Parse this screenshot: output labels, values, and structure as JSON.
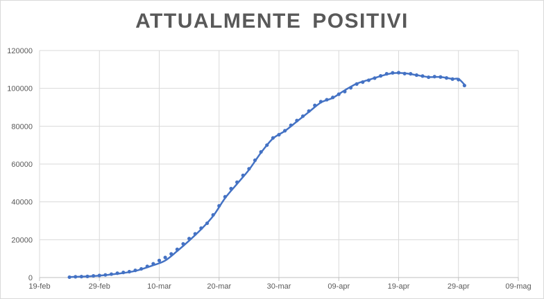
{
  "chart_data": {
    "type": "line",
    "title": "ATTUALMENTE  POSITIVI",
    "xlabel": "",
    "ylabel": "",
    "x_tick_labels": [
      "19-feb",
      "29-feb",
      "10-mar",
      "20-mar",
      "30-mar",
      "09-apr",
      "19-apr",
      "29-apr",
      "09-mag"
    ],
    "y_tick_labels": [
      "0",
      "20000",
      "40000",
      "60000",
      "80000",
      "100000",
      "120000"
    ],
    "xlim": [
      0,
      80
    ],
    "ylim": [
      0,
      120000
    ],
    "x_tick_step": 10,
    "y_tick_step": 20000,
    "grid": true,
    "legend": "none",
    "series_color": "#4472c4",
    "series": [
      {
        "style": "markers",
        "x": [
          5,
          6,
          7,
          8,
          9,
          10,
          11,
          12,
          13,
          14,
          15,
          16,
          17,
          18,
          19,
          20,
          21,
          22,
          23,
          24,
          25,
          26,
          27,
          28,
          29,
          30,
          31,
          32,
          33,
          34,
          35,
          36,
          37,
          38,
          39,
          40,
          41,
          42,
          43,
          44,
          45,
          46,
          47,
          48,
          49,
          50,
          51,
          52,
          53,
          54,
          55,
          56,
          57,
          58,
          59,
          60,
          61,
          62,
          63,
          64,
          65,
          66,
          67,
          68,
          69,
          70,
          71
        ],
        "values": [
          200,
          400,
          500,
          600,
          900,
          1100,
          1400,
          1800,
          2300,
          2700,
          3100,
          3800,
          4600,
          5900,
          7300,
          9000,
          10600,
          12500,
          14900,
          17800,
          20600,
          23100,
          26100,
          28700,
          33100,
          37900,
          42700,
          47000,
          50400,
          54000,
          57500,
          62000,
          66400,
          70000,
          73800,
          75500,
          77600,
          80500,
          83000,
          85300,
          88000,
          91000,
          93000,
          94000,
          95200,
          96900,
          98300,
          100300,
          102300,
          103300,
          104300,
          105400,
          106600,
          107700,
          108200,
          108300,
          107800,
          107700,
          107000,
          106500,
          105900,
          106200,
          106000,
          105500,
          104900,
          104600,
          101500
        ]
      },
      {
        "style": "line",
        "x": [
          5,
          7,
          10,
          13,
          16,
          19,
          21,
          23,
          25,
          27,
          29,
          31,
          33,
          35,
          37,
          39,
          41,
          43,
          45,
          47,
          49,
          51,
          53,
          55,
          57,
          59,
          61,
          63,
          65,
          67,
          69,
          70,
          71
        ],
        "values": [
          300,
          500,
          1000,
          2000,
          3500,
          6500,
          9000,
          14000,
          19500,
          25500,
          32500,
          42000,
          49500,
          57000,
          66000,
          73500,
          77500,
          82500,
          87500,
          92500,
          95000,
          99000,
          102500,
          104500,
          106500,
          108000,
          108000,
          107000,
          106000,
          106000,
          105000,
          105000,
          102000
        ]
      }
    ]
  }
}
